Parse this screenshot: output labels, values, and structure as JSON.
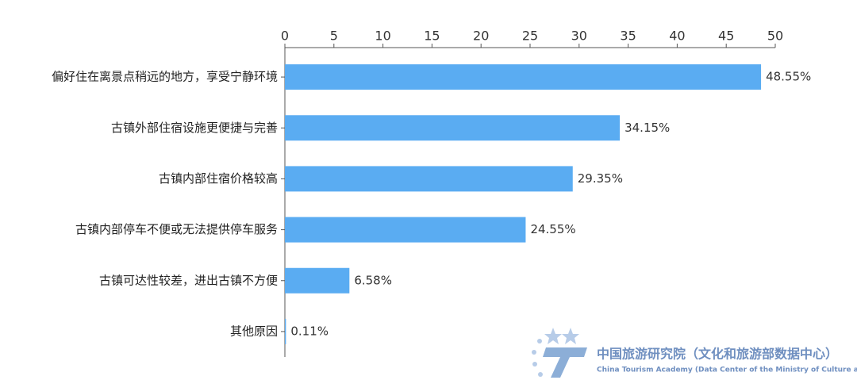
{
  "chart_data": {
    "type": "hbar",
    "categories": [
      "偏好住在离景点稍远的地方，享受宁静环境",
      "古镇外部住宿设施更便捷与完善",
      "古镇内部住宿价格较高",
      "古镇内部停车不便或无法提供停车服务",
      "古镇可达性较差，进出古镇不方便",
      "其他原因"
    ],
    "values": [
      48.55,
      34.15,
      29.35,
      24.55,
      6.58,
      0.11
    ],
    "value_labels": [
      "48.55%",
      "34.15%",
      "29.35%",
      "24.55%",
      "6.58%",
      "0.11%"
    ],
    "color": "#5aacf2",
    "xlim": [
      0,
      50
    ],
    "xticks": [
      0,
      5,
      10,
      15,
      20,
      25,
      30,
      35,
      40,
      45,
      50
    ]
  },
  "watermark": {
    "title": "中国旅游研究院（文化和旅游部数据中心）",
    "subtitle": "China Tourism Academy (Data Center of the Ministry of Culture and Tourism)"
  }
}
